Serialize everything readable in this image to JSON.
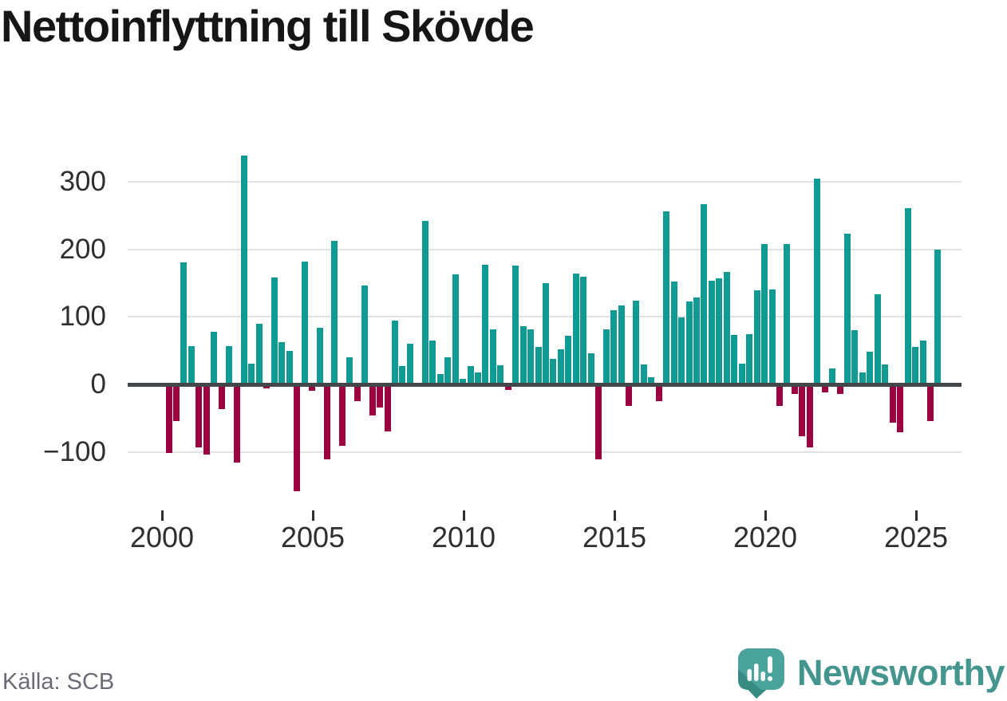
{
  "title": "Nettoinflyttning till Skövde",
  "source": "Källa: SCB",
  "brand": {
    "name": "Newsworthy",
    "icon": "newsworthy-speech-bubble-bar-chart-icon"
  },
  "colors": {
    "positive_bar": "#109a94",
    "negative_bar": "#9b0141",
    "axis_line": "#44474a",
    "gridline": "#e2e2e2",
    "tick_text": "#2f2f2f",
    "title_text": "#161616",
    "source_text": "#6b6b74",
    "brand_text": "#45958f",
    "brand_icon_main": "#4ba49b",
    "brand_icon_shade": "#368c81"
  },
  "chart_data": {
    "type": "bar",
    "title": "Nettoinflyttning till Skövde",
    "x_unit": "quarter",
    "start_year": 2000,
    "start_quarter": 1,
    "end_label": "2025 Q3",
    "x_tick_labels": [
      "2000",
      "2005",
      "2010",
      "2015",
      "2020",
      "2025"
    ],
    "y_tick_labels": [
      "300",
      "200",
      "100",
      "0",
      "−100"
    ],
    "y_ticks": [
      300,
      200,
      100,
      0,
      -100
    ],
    "ylim": [
      -170,
      350
    ],
    "grid": true,
    "legend_position": "none",
    "values": [
      -100,
      -53,
      181,
      57,
      -92,
      -103,
      78,
      -35,
      57,
      -114,
      339,
      31,
      90,
      -5,
      158,
      63,
      50,
      -157,
      182,
      -8,
      84,
      -110,
      212,
      -90,
      40,
      -24,
      146,
      -45,
      -33,
      -69,
      95,
      27,
      60,
      0,
      242,
      65,
      15,
      40,
      163,
      8,
      27,
      18,
      177,
      82,
      28,
      -7,
      176,
      86,
      82,
      55,
      150,
      38,
      52,
      72,
      164,
      159,
      46,
      -110,
      82,
      110,
      117,
      -31,
      124,
      29,
      11,
      -24,
      256,
      152,
      99,
      123,
      129,
      267,
      153,
      157,
      167,
      73,
      31,
      74,
      139,
      208,
      140,
      -31,
      208,
      -13,
      -76,
      -92,
      305,
      -11,
      24,
      -13,
      223,
      80,
      18,
      48,
      133,
      30,
      -55,
      -70,
      261,
      55,
      65,
      -53,
      200
    ]
  }
}
